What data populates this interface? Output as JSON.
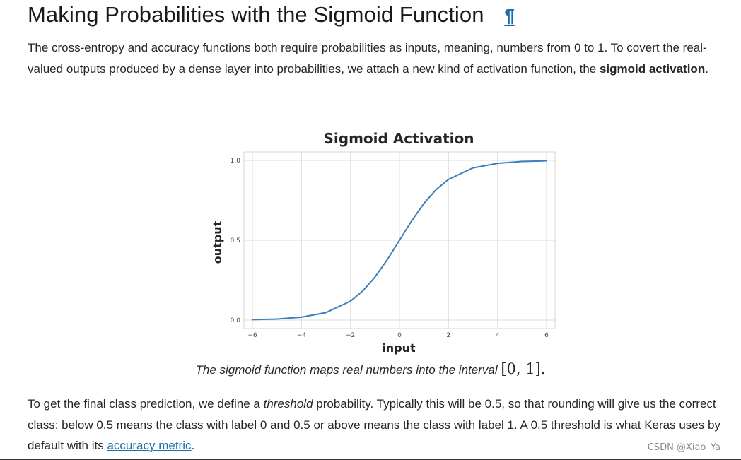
{
  "section": {
    "title": "Making Probabilities with the Sigmoid Function",
    "anchor_symbol": "¶"
  },
  "intro": {
    "text_before": "The cross-entropy and accuracy functions both require probabilities as inputs, meaning, numbers from 0 to 1. To covert the real-valued outputs produced by a dense layer into probabilities, we attach a new kind of activation function, the ",
    "bold_term": "sigmoid activation",
    "text_after": "."
  },
  "chart_data": {
    "type": "line",
    "title": "Sigmoid Activation",
    "xlabel": "input",
    "ylabel": "output",
    "xlim": [
      -6,
      6
    ],
    "ylim": [
      0,
      1
    ],
    "x_ticks": [
      "−6",
      "−4",
      "−2",
      "0",
      "2",
      "4",
      "6"
    ],
    "y_ticks": [
      "0.0",
      "0.5",
      "1.0"
    ],
    "grid": true,
    "series": [
      {
        "color": "#3a7fbf",
        "x": [
          -6,
          -5,
          -4,
          -3,
          -2,
          -1.5,
          -1,
          -0.5,
          0,
          0.5,
          1,
          1.5,
          2,
          3,
          4,
          5,
          6
        ],
        "y": [
          0.0025,
          0.0067,
          0.018,
          0.047,
          0.119,
          0.182,
          0.269,
          0.378,
          0.5,
          0.622,
          0.731,
          0.818,
          0.881,
          0.953,
          0.982,
          0.9933,
          0.9975
        ]
      }
    ]
  },
  "caption": {
    "text": "The sigmoid function maps real numbers into the interval ",
    "interval": "[0, 1]",
    "end": "."
  },
  "threshold_paragraph": {
    "part1": "To get the final class prediction, we define a ",
    "italic": "threshold",
    "part2": " probability. Typically this will be 0.5, so that rounding will give us the correct class: below 0.5 means the class with label 0 and 0.5 or above means the class with label 1. A 0.5 threshold is what Keras uses by default with its ",
    "link": "accuracy metric",
    "part3": "."
  },
  "watermark": "CSDN @Xiao_Ya__"
}
